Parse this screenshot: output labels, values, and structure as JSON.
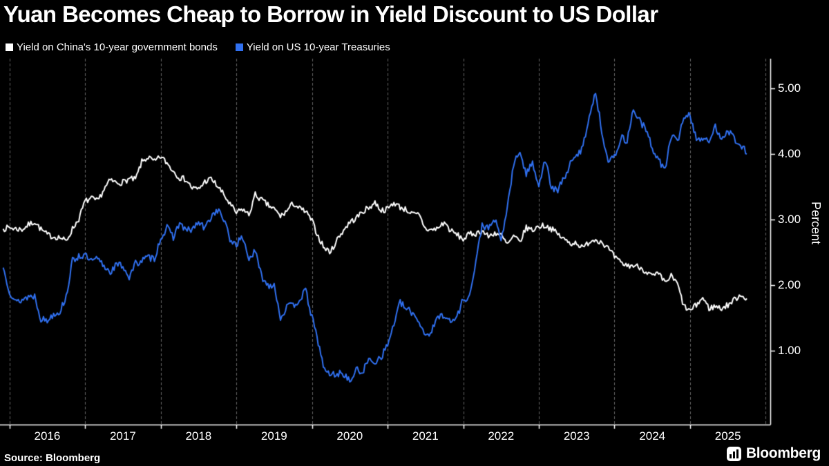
{
  "header": {
    "title": "Yuan Becomes Cheap to Borrow in Yield Discount to US Dollar"
  },
  "legend": [
    {
      "label": "Yield on China's 10-year government bonds",
      "color": "#ffffff"
    },
    {
      "label": "Yield on US 10-year Treasuries",
      "color": "#3070f0"
    }
  ],
  "footer": {
    "source": "Source: Bloomberg",
    "logo_text": "Bloomberg"
  },
  "chart_data": {
    "type": "line",
    "title": "Yuan Becomes Cheap to Borrow in Yield Discount to US Dollar",
    "ylabel": "Percent",
    "xlabel": "",
    "grid": "vertical-dashed",
    "legend_position": "top-left",
    "y_ticks": [
      "1.00",
      "2.00",
      "3.00",
      "4.00",
      "5.00"
    ],
    "x_ticks": [
      "2016",
      "2017",
      "2018",
      "2019",
      "2020",
      "2021",
      "2022",
      "2023",
      "2024",
      "2025"
    ],
    "xlim": [
      2015.875,
      2026.06
    ],
    "ylim": [
      -0.12,
      5.45
    ],
    "start_month": "2015-12",
    "frequency": "monthly",
    "series": [
      {
        "name": "Yield on China's 10-year government bonds",
        "color": "#ffffff",
        "values": [
          2.86,
          2.88,
          2.86,
          2.85,
          2.92,
          2.97,
          2.85,
          2.77,
          2.74,
          2.73,
          2.67,
          2.86,
          3.01,
          3.28,
          3.32,
          3.28,
          3.46,
          3.6,
          3.56,
          3.57,
          3.62,
          3.61,
          3.88,
          3.95,
          3.88,
          3.96,
          3.86,
          3.74,
          3.64,
          3.61,
          3.48,
          3.46,
          3.58,
          3.62,
          3.51,
          3.38,
          3.23,
          3.1,
          3.16,
          3.07,
          3.38,
          3.3,
          3.22,
          3.16,
          3.05,
          3.13,
          3.25,
          3.17,
          3.12,
          2.98,
          2.74,
          2.56,
          2.51,
          2.7,
          2.84,
          2.96,
          3.02,
          3.12,
          3.18,
          3.26,
          3.14,
          3.16,
          3.26,
          3.19,
          3.15,
          3.08,
          3.07,
          2.86,
          2.84,
          2.87,
          2.96,
          2.83,
          2.77,
          2.7,
          2.78,
          2.79,
          2.83,
          2.74,
          2.8,
          2.76,
          2.62,
          2.74,
          2.66,
          2.88,
          2.84,
          2.9,
          2.91,
          2.86,
          2.78,
          2.7,
          2.64,
          2.65,
          2.56,
          2.67,
          2.7,
          2.66,
          2.56,
          2.43,
          2.34,
          2.3,
          2.3,
          2.28,
          2.21,
          2.14,
          2.17,
          2.04,
          2.14,
          2.02,
          1.68,
          1.61,
          1.7,
          1.81,
          1.65,
          1.68,
          1.65,
          1.7,
          1.78,
          1.86,
          1.8
        ]
      },
      {
        "name": "Yield on US 10-year Treasuries",
        "color": "#3070f0",
        "values": [
          2.27,
          1.92,
          1.74,
          1.78,
          1.83,
          1.84,
          1.49,
          1.46,
          1.57,
          1.6,
          1.83,
          2.37,
          2.45,
          2.45,
          2.36,
          2.4,
          2.29,
          2.21,
          2.31,
          2.3,
          2.12,
          2.33,
          2.38,
          2.42,
          2.41,
          2.72,
          2.87,
          2.74,
          2.95,
          2.83,
          2.85,
          2.96,
          2.86,
          3.05,
          3.15,
          3.01,
          2.69,
          2.63,
          2.73,
          2.41,
          2.51,
          2.14,
          2.0,
          2.02,
          1.5,
          1.67,
          1.69,
          1.78,
          1.92,
          1.51,
          1.13,
          0.7,
          0.64,
          0.65,
          0.66,
          0.53,
          0.71,
          0.68,
          0.86,
          0.84,
          0.92,
          1.09,
          1.42,
          1.74,
          1.63,
          1.58,
          1.45,
          1.24,
          1.3,
          1.52,
          1.56,
          1.43,
          1.52,
          1.79,
          1.83,
          2.34,
          2.93,
          2.85,
          3.01,
          2.67,
          3.19,
          3.83,
          4.05,
          3.68,
          3.88,
          3.52,
          3.92,
          3.48,
          3.44,
          3.64,
          3.84,
          3.97,
          4.11,
          4.59,
          4.93,
          4.35,
          3.88,
          3.95,
          4.25,
          4.2,
          4.68,
          4.51,
          4.36,
          4.09,
          3.91,
          3.75,
          4.28,
          4.18,
          4.58,
          4.58,
          4.24,
          4.23,
          4.17,
          4.42,
          4.24,
          4.37,
          4.23,
          4.15,
          4.0
        ]
      }
    ]
  }
}
